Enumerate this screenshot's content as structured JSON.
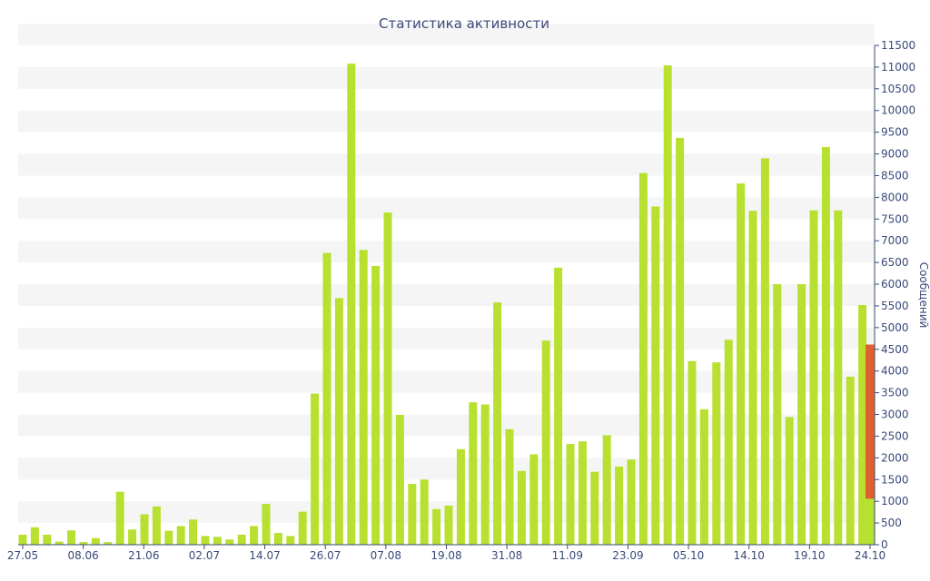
{
  "chart_data": {
    "type": "bar",
    "title": "Статистика активности",
    "xlabel": "",
    "ylabel": "Сообщений",
    "ylim": [
      0,
      11500
    ],
    "y_ticks": [
      0,
      500,
      1000,
      1500,
      2000,
      2500,
      3000,
      3500,
      4000,
      4500,
      5000,
      5500,
      6000,
      6500,
      7000,
      7500,
      8000,
      8500,
      9000,
      9500,
      10000,
      10500,
      11000,
      11500
    ],
    "x_tick_labels": [
      "27.05",
      "08.06",
      "21.06",
      "02.07",
      "14.07",
      "26.07",
      "07.08",
      "19.08",
      "31.08",
      "11.09",
      "23.09",
      "05.10",
      "14.10",
      "19.10",
      "24.10"
    ],
    "grid": "horizontal bands",
    "colors": {
      "bar": "#b8e030",
      "highlight": "#e06030",
      "text": "#3a4a7a",
      "band": "#f5f5f5"
    },
    "values": [
      230,
      400,
      230,
      70,
      330,
      60,
      150,
      60,
      1220,
      350,
      700,
      880,
      320,
      430,
      580,
      200,
      180,
      120,
      230,
      430,
      940,
      270,
      200,
      760,
      3480,
      6720,
      5680,
      11080,
      6790,
      6420,
      7650,
      2990,
      1400,
      1500,
      820,
      900,
      2200,
      3280,
      3230,
      5580,
      2660,
      1700,
      2080,
      4700,
      6380,
      2320,
      2380,
      1680,
      2520,
      1800,
      1960,
      8560,
      7790,
      11040,
      9370,
      4230,
      3120,
      4200,
      4720,
      8320,
      7690,
      8900,
      6000,
      2940,
      6000,
      7700,
      9160,
      7700,
      3870,
      5520,
      1060
    ],
    "last_bar_overlay": 4610
  }
}
